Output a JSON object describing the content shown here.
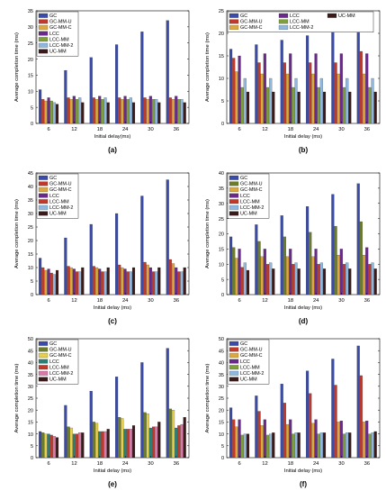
{
  "colors": {
    "GC": "#3b4ba8",
    "GC-MM-U": "#c0392b",
    "GC-MM-C": "#e0a83a",
    "LCC": "#6a2a8a",
    "LCC-MM": "#7f9f3a",
    "LCC-MM-2": "#8fb8e0",
    "UC-MM": "#3a1a1a",
    "GC-MM-U-green": "#6b7d2a",
    "GC-MM-C-yellow": "#e8d04a",
    "LCC-teal": "#2a7f74",
    "LCC-MM-red": "#c0392b",
    "LCC-MM-2-pink": "#d77aa8"
  },
  "chart_data": [
    {
      "panel": "(a)",
      "type": "bar",
      "xlabel": "Initial delay(ms)",
      "ylabel": "Average completion time (ms)",
      "categories": [
        "6",
        "12",
        "18",
        "24",
        "30",
        "36"
      ],
      "ylim": [
        0,
        35
      ],
      "yticks": [
        0,
        5,
        10,
        15,
        20,
        25,
        30,
        35
      ],
      "legend": [
        "GC",
        "GC-MM-U",
        "GC-MM-C",
        "LCC",
        "LCC-MM",
        "LCC-MM-2",
        "UC-MM"
      ],
      "legend_position": "top-left",
      "series": [
        {
          "name": "GC",
          "values": [
            10.5,
            16.5,
            20.5,
            24.5,
            28.5,
            32
          ]
        },
        {
          "name": "GC-MM-U",
          "values": [
            7.5,
            8,
            8,
            8,
            8,
            8
          ]
        },
        {
          "name": "GC-MM-C",
          "values": [
            7,
            7.5,
            7.5,
            7.5,
            7.5,
            7.5
          ]
        },
        {
          "name": "LCC",
          "values": [
            8,
            8.5,
            8.5,
            8.5,
            8.5,
            8.5
          ]
        },
        {
          "name": "LCC-MM",
          "values": [
            7,
            7.5,
            7.5,
            7.5,
            7.5,
            7.5
          ]
        },
        {
          "name": "LCC-MM-2",
          "values": [
            6.5,
            8,
            8,
            8,
            7.5,
            7.5
          ]
        },
        {
          "name": "UC-MM",
          "values": [
            6,
            6.5,
            6.5,
            6.5,
            6.5,
            6.5
          ]
        }
      ]
    },
    {
      "panel": "(b)",
      "type": "bar",
      "xlabel": "Initial delay (ms)",
      "ylabel": "Average completion time (ms)",
      "categories": [
        "6",
        "12",
        "18",
        "24",
        "30",
        "36"
      ],
      "ylim": [
        0,
        25
      ],
      "yticks": [
        0,
        5,
        10,
        15,
        20,
        25
      ],
      "legend": [
        "GC",
        "GC-MM-U",
        "GC-MM-C",
        "LCC",
        "LCC-MM",
        "LCC-MM-2",
        "UC-MM"
      ],
      "legend_position": "top",
      "series": [
        {
          "name": "GC",
          "values": [
            16.5,
            17.5,
            18.5,
            19.5,
            20.5,
            22.5
          ]
        },
        {
          "name": "GC-MM-U",
          "values": [
            14.5,
            13.5,
            13.5,
            13.5,
            13.5,
            16
          ]
        },
        {
          "name": "GC-MM-C",
          "values": [
            11.5,
            11,
            11,
            11,
            11,
            11
          ]
        },
        {
          "name": "LCC",
          "values": [
            15,
            15.5,
            15.5,
            15.5,
            15.5,
            15.5
          ]
        },
        {
          "name": "LCC-MM",
          "values": [
            8,
            8,
            8,
            8,
            8,
            8
          ]
        },
        {
          "name": "LCC-MM-2",
          "values": [
            10,
            10,
            10,
            10,
            10,
            10
          ]
        },
        {
          "name": "UC-MM",
          "values": [
            7,
            7,
            7,
            7,
            7,
            7
          ]
        }
      ]
    },
    {
      "panel": "(c)",
      "type": "bar",
      "xlabel": "Initial delay (ms)",
      "ylabel": "Average completion time (ms)",
      "categories": [
        "6",
        "12",
        "18",
        "24",
        "30",
        "36"
      ],
      "ylim": [
        0,
        45
      ],
      "yticks": [
        0,
        5,
        10,
        15,
        20,
        25,
        30,
        35,
        40,
        45
      ],
      "legend": [
        "GC",
        "GC-MM-U",
        "GC-MM-C",
        "LCC",
        "LCC-MM",
        "LCC-MM-2",
        "UC-MM"
      ],
      "legend_position": "top-left",
      "series": [
        {
          "name": "GC",
          "values": [
            13.5,
            21,
            26,
            30,
            36.5,
            42.5
          ]
        },
        {
          "name": "GC-MM-U",
          "values": [
            10,
            10.5,
            10.5,
            11,
            12,
            13
          ]
        },
        {
          "name": "GC-MM-C",
          "values": [
            9,
            10,
            10,
            10,
            11,
            11.5
          ]
        },
        {
          "name": "LCC",
          "values": [
            9.5,
            9.5,
            9.5,
            9.5,
            10,
            10
          ]
        },
        {
          "name": "LCC-MM",
          "values": [
            8,
            8.5,
            8.5,
            8.5,
            8.5,
            8.5
          ]
        },
        {
          "name": "LCC-MM-2",
          "values": [
            7.5,
            8.5,
            8.5,
            8.5,
            8.5,
            8.5
          ]
        },
        {
          "name": "UC-MM",
          "values": [
            9,
            10,
            10,
            10,
            10,
            10
          ]
        }
      ]
    },
    {
      "panel": "(d)",
      "type": "bar",
      "xlabel": "Initial delay (ms)",
      "ylabel": "Average completion time (ms)",
      "categories": [
        "6",
        "12",
        "18",
        "24",
        "30",
        "36"
      ],
      "ylim": [
        0,
        40
      ],
      "yticks": [
        0,
        5,
        10,
        15,
        20,
        25,
        30,
        35,
        40
      ],
      "legend": [
        "GC",
        "GC-MM-U",
        "GC-MM-C",
        "LCC",
        "LCC-MM",
        "LCC-MM-2",
        "UC-MM"
      ],
      "legend_position": "top-left",
      "series": [
        {
          "name": "GC",
          "values": [
            19,
            23,
            26,
            29,
            33,
            36.5
          ]
        },
        {
          "name": "GC-MM-U",
          "values": [
            15.5,
            17.5,
            19,
            20.5,
            22.5,
            24
          ]
        },
        {
          "name": "GC-MM-C",
          "values": [
            12,
            12.5,
            12.5,
            12.5,
            13,
            13
          ]
        },
        {
          "name": "LCC",
          "values": [
            15,
            15,
            15,
            15,
            15,
            15.5
          ]
        },
        {
          "name": "LCC-MM",
          "values": [
            9,
            10,
            10,
            10,
            10,
            10
          ]
        },
        {
          "name": "LCC-MM-2",
          "values": [
            10.5,
            10.5,
            10.5,
            10.5,
            10.5,
            10.5
          ]
        },
        {
          "name": "UC-MM",
          "values": [
            8,
            8.5,
            8.5,
            8.5,
            8.5,
            8.5
          ]
        }
      ]
    },
    {
      "panel": "(e)",
      "type": "bar",
      "xlabel": "Initial delay (ms)",
      "ylabel": "Average completion time (ms)",
      "categories": [
        "6",
        "12",
        "18",
        "24",
        "30",
        "36"
      ],
      "ylim": [
        0,
        50
      ],
      "yticks": [
        0,
        5,
        10,
        15,
        20,
        25,
        30,
        35,
        40,
        45,
        50
      ],
      "legend": [
        "GC",
        "GC-MM-U",
        "GC-MM-C",
        "LCC",
        "LCC-MM",
        "LCC-MM-2",
        "UC-MM"
      ],
      "legend_position": "top-left",
      "series": [
        {
          "name": "GC",
          "values": [
            11,
            22,
            28,
            34,
            40,
            46
          ]
        },
        {
          "name": "GC-MM-U",
          "values": [
            10.5,
            13,
            15,
            17,
            19,
            20.5
          ]
        },
        {
          "name": "GC-MM-C",
          "values": [
            10,
            12.5,
            14.5,
            16.5,
            18.5,
            20
          ]
        },
        {
          "name": "LCC",
          "values": [
            10,
            10,
            11,
            12,
            12.5,
            12.5
          ]
        },
        {
          "name": "LCC-MM",
          "values": [
            9.5,
            10,
            11,
            12,
            13,
            13.5
          ]
        },
        {
          "name": "LCC-MM-2",
          "values": [
            9,
            10.5,
            11,
            12,
            13,
            14
          ]
        },
        {
          "name": "UC-MM",
          "values": [
            8.5,
            10.5,
            12,
            13.5,
            15,
            17
          ]
        }
      ]
    },
    {
      "panel": "(f)",
      "type": "bar",
      "xlabel": "Initial delay (ms)",
      "ylabel": "Average completion time (ms)",
      "categories": [
        "6",
        "12",
        "18",
        "24",
        "30",
        "36"
      ],
      "ylim": [
        0,
        50
      ],
      "yticks": [
        0,
        5,
        10,
        15,
        20,
        25,
        30,
        35,
        40,
        45,
        50
      ],
      "legend": [
        "GC",
        "GC-MM-U",
        "GC-MM-C",
        "LCC",
        "LCC-MM",
        "LCC-MM-2",
        "UC-MM"
      ],
      "legend_position": "top-left",
      "series": [
        {
          "name": "GC",
          "values": [
            21,
            26,
            31,
            36.5,
            41.5,
            47
          ]
        },
        {
          "name": "GC-MM-U",
          "values": [
            16,
            19.5,
            23,
            27,
            30.5,
            34.5
          ]
        },
        {
          "name": "GC-MM-C",
          "values": [
            13,
            13.5,
            14,
            14.5,
            15,
            15
          ]
        },
        {
          "name": "LCC",
          "values": [
            16,
            16,
            16,
            16,
            15.5,
            15.5
          ]
        },
        {
          "name": "LCC-MM",
          "values": [
            9.5,
            9.5,
            10,
            10,
            10,
            10
          ]
        },
        {
          "name": "LCC-MM-2",
          "values": [
            10,
            10,
            10.5,
            10.5,
            10.5,
            10.5
          ]
        },
        {
          "name": "UC-MM",
          "values": [
            10,
            10.5,
            10.5,
            10.5,
            10.5,
            11
          ]
        }
      ]
    }
  ]
}
